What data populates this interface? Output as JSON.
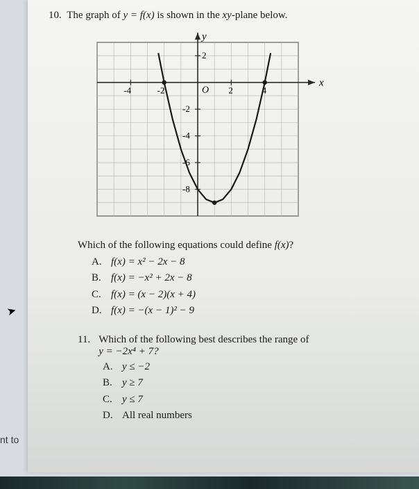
{
  "q10": {
    "number": "10.",
    "stem_prefix": "The graph of ",
    "stem_eq": "y = f(x)",
    "stem_suffix": " is shown in the ",
    "stem_plane": "xy",
    "stem_end": "-plane below.",
    "subq": "Which of the following equations could define ",
    "subq_fx": "f(x)",
    "subq_end": "?",
    "options": {
      "A": {
        "letter": "A.",
        "text": "f(x) = x² − 2x − 8"
      },
      "B": {
        "letter": "B.",
        "text": "f(x) = −x² + 2x − 8"
      },
      "C": {
        "letter": "C.",
        "text": "f(x) = (x − 2)(x + 4)"
      },
      "D": {
        "letter": "D.",
        "text": "f(x) = −(x − 1)² − 9"
      }
    }
  },
  "q11": {
    "number": "11.",
    "stem": "Which of the following best describes the range of",
    "eq": "y = −2x⁴ + 7?",
    "options": {
      "A": {
        "letter": "A.",
        "text": "y ≤ −2"
      },
      "B": {
        "letter": "B.",
        "text": "y ≥ 7"
      },
      "C": {
        "letter": "C.",
        "text": "y ≤ 7"
      },
      "D": {
        "letter": "D.",
        "text": "All real numbers"
      }
    }
  },
  "side_text": "nt to",
  "chart": {
    "type": "line",
    "x_axis_label": "x",
    "y_axis_label": "y",
    "origin_label": "O",
    "xlim": [
      -6,
      6
    ],
    "ylim": [
      -10,
      3
    ],
    "xtick_labels": [
      -4,
      -2,
      2,
      4
    ],
    "ytick_labels": [
      2,
      -2,
      -4,
      -6,
      -8
    ],
    "grid_color": "#aeb2b0",
    "axis_color": "#2a2a2a",
    "curve_color": "#1a1a1a",
    "curve_width": 2.2,
    "background": "transparent",
    "curve_points": [
      [
        -2.35,
        2.2
      ],
      [
        -2,
        0
      ],
      [
        -1.5,
        -2.75
      ],
      [
        -1,
        -5
      ],
      [
        -0.5,
        -6.75
      ],
      [
        0,
        -8
      ],
      [
        0.5,
        -8.75
      ],
      [
        1,
        -9
      ],
      [
        1.5,
        -8.75
      ],
      [
        2,
        -8
      ],
      [
        2.5,
        -6.75
      ],
      [
        3,
        -5
      ],
      [
        3.5,
        -2.75
      ],
      [
        4,
        0
      ],
      [
        4.35,
        2.2
      ]
    ],
    "roots": [
      [
        -2,
        0
      ],
      [
        4,
        0
      ]
    ],
    "vertex": [
      1,
      -9
    ]
  }
}
